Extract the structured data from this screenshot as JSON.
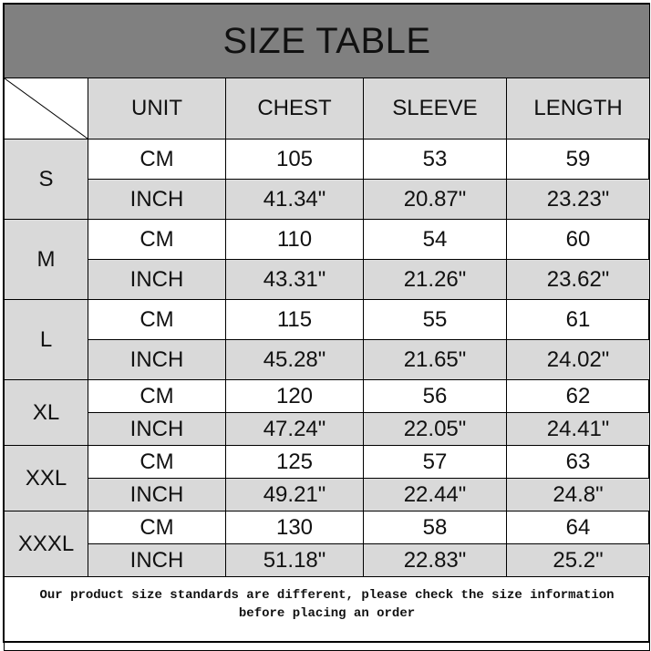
{
  "title": "SIZE TABLE",
  "header": [
    "UNIT",
    "CHEST",
    "SLEEVE",
    "LENGTH"
  ],
  "sizes": [
    {
      "size": "S",
      "rows": [
        {
          "unit": "CM",
          "values": [
            "105",
            "53",
            "59"
          ]
        },
        {
          "unit": "INCH",
          "values": [
            "41.34\"",
            "20.87\"",
            "23.23\""
          ]
        }
      ]
    },
    {
      "size": "M",
      "rows": [
        {
          "unit": "CM",
          "values": [
            "110",
            "54",
            "60"
          ]
        },
        {
          "unit": "INCH",
          "values": [
            "43.31\"",
            "21.26\"",
            "23.62\""
          ]
        }
      ]
    },
    {
      "size": "L",
      "rows": [
        {
          "unit": "CM",
          "values": [
            "115",
            "55",
            "61"
          ]
        },
        {
          "unit": "INCH",
          "values": [
            "45.28\"",
            "21.65\"",
            "24.02\""
          ]
        }
      ]
    },
    {
      "size": "XL",
      "rows": [
        {
          "unit": "CM",
          "values": [
            "120",
            "56",
            "62"
          ]
        },
        {
          "unit": "INCH",
          "values": [
            "47.24\"",
            "22.05\"",
            "24.41\""
          ]
        }
      ]
    },
    {
      "size": "XXL",
      "rows": [
        {
          "unit": "CM",
          "values": [
            "125",
            "57",
            "63"
          ]
        },
        {
          "unit": "INCH",
          "values": [
            "49.21\"",
            "22.44\"",
            "24.8\""
          ]
        }
      ]
    },
    {
      "size": "XXXL",
      "rows": [
        {
          "unit": "CM",
          "values": [
            "130",
            "58",
            "64"
          ]
        },
        {
          "unit": "INCH",
          "values": [
            "51.18\"",
            "22.83\"",
            "25.2\""
          ]
        }
      ]
    }
  ],
  "footer": {
    "line1": "Our product size standards are different, please check the size information",
    "line2": "before placing an order"
  },
  "colors": {
    "title_bg": "#808080",
    "shaded_cell": "#d9d9d9"
  }
}
